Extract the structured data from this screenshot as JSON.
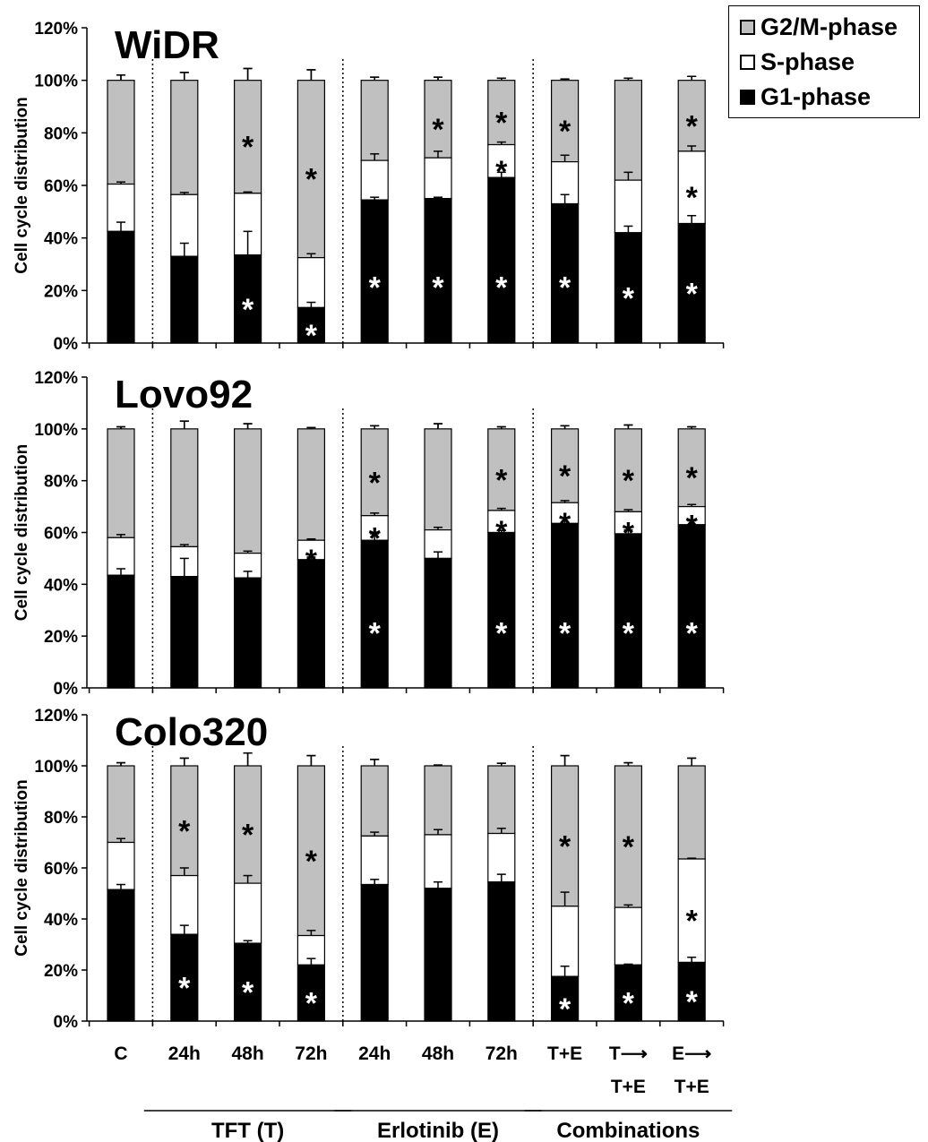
{
  "legend": {
    "items": [
      {
        "label": "G2/M-phase",
        "color": "#c0c0c0"
      },
      {
        "label": "S-phase",
        "color": "#ffffff"
      },
      {
        "label": "G1-phase",
        "color": "#000000"
      }
    ]
  },
  "chart_data": {
    "type": "bar",
    "stacked": true,
    "ylabel": "Cell cycle distribution",
    "ylim": [
      0,
      120
    ],
    "yticks": [
      "0%",
      "20%",
      "40%",
      "60%",
      "80%",
      "100%",
      "120%"
    ],
    "categories": [
      {
        "line1": "C",
        "line2": ""
      },
      {
        "line1": "24h",
        "line2": ""
      },
      {
        "line1": "48h",
        "line2": ""
      },
      {
        "line1": "72h",
        "line2": ""
      },
      {
        "line1": "24h",
        "line2": ""
      },
      {
        "line1": "48h",
        "line2": ""
      },
      {
        "line1": "72h",
        "line2": ""
      },
      {
        "line1": "T+E",
        "line2": ""
      },
      {
        "line1": "T⟶",
        "line2": "T+E"
      },
      {
        "line1": "E⟶",
        "line2": "T+E"
      }
    ],
    "groups": [
      {
        "label": "TFT (T)",
        "categories": [
          1,
          2,
          3
        ]
      },
      {
        "label": "Erlotinib (E)",
        "categories": [
          4,
          5,
          6
        ]
      },
      {
        "label": "Combinations",
        "categories": [
          7,
          8,
          9
        ]
      }
    ],
    "series_colors": {
      "G1": "#000000",
      "S": "#ffffff",
      "G2M": "#c0c0c0"
    },
    "panels": [
      {
        "title": "WiDR",
        "G1": [
          42.5,
          33,
          33.5,
          13.5,
          54.5,
          55,
          63,
          53,
          42,
          45.5
        ],
        "S": [
          18,
          23.5,
          23.5,
          19,
          15,
          15.5,
          12.5,
          16,
          20,
          27.5
        ],
        "G2M": [
          39.5,
          43.5,
          43,
          67.5,
          30.5,
          29.5,
          24.5,
          31,
          38,
          27
        ],
        "err_total": [
          2,
          3,
          4.5,
          4,
          1.2,
          1.2,
          0.8,
          0.5,
          0.8,
          1.5
        ],
        "err_s": [
          0.8,
          0.8,
          0.5,
          1.5,
          2.5,
          2.5,
          1,
          2.5,
          3,
          2
        ],
        "err_g1": [
          3.5,
          5,
          9,
          2,
          1,
          0.5,
          2,
          3.5,
          2.5,
          3
        ],
        "stars_g2m": [
          false,
          false,
          true,
          true,
          false,
          true,
          true,
          true,
          false,
          true
        ],
        "stars_s": [
          false,
          false,
          false,
          false,
          false,
          false,
          true,
          false,
          false,
          true
        ],
        "stars_g1": [
          false,
          false,
          true,
          true,
          true,
          true,
          true,
          true,
          true,
          true
        ]
      },
      {
        "title": "Lovo92",
        "G1": [
          43.5,
          43,
          42.5,
          49.5,
          57,
          50,
          60,
          63.5,
          59.5,
          63
        ],
        "S": [
          14.5,
          11.5,
          9.5,
          7.5,
          9.5,
          11,
          8.5,
          8,
          8.5,
          7
        ],
        "G2M": [
          42,
          45.5,
          48,
          43,
          33.5,
          39,
          31.5,
          28.5,
          32,
          30
        ],
        "err_total": [
          0.8,
          3,
          2,
          0.5,
          1.2,
          2,
          0.8,
          1.2,
          1.5,
          0.8
        ],
        "err_s": [
          1.2,
          0.8,
          0.8,
          0.5,
          1,
          1,
          0.8,
          0.8,
          0.8,
          0.8
        ],
        "err_g1": [
          2.5,
          7,
          2.5,
          1,
          2.5,
          2.5,
          0.8,
          2,
          1.5,
          1.5
        ],
        "stars_g2m": [
          false,
          false,
          false,
          false,
          true,
          false,
          true,
          true,
          true,
          true
        ],
        "stars_s": [
          false,
          false,
          false,
          true,
          true,
          false,
          true,
          true,
          true,
          true
        ],
        "stars_g1": [
          false,
          false,
          false,
          false,
          true,
          false,
          true,
          true,
          true,
          true
        ]
      },
      {
        "title": "Colo320",
        "G1": [
          51.5,
          34,
          30.5,
          22,
          53.5,
          52,
          54.5,
          17.5,
          22,
          23
        ],
        "S": [
          18.5,
          23,
          23.5,
          11.5,
          19,
          21,
          19,
          27.5,
          22.5,
          40.5
        ],
        "G2M": [
          30,
          43,
          46,
          66.5,
          27.5,
          27,
          26.5,
          55,
          55.5,
          36.5
        ],
        "err_total": [
          1.2,
          3,
          5,
          4,
          2.5,
          0.3,
          1,
          4,
          1.2,
          3
        ],
        "err_s": [
          1.5,
          3,
          3,
          2,
          1.5,
          2,
          2,
          5.5,
          1,
          0.3
        ],
        "err_g1": [
          2,
          3.5,
          1,
          2.5,
          2,
          2.5,
          3,
          4,
          0.3,
          2
        ],
        "stars_g2m": [
          false,
          true,
          true,
          true,
          false,
          false,
          false,
          true,
          true,
          false
        ],
        "stars_s": [
          false,
          false,
          false,
          false,
          false,
          false,
          false,
          false,
          false,
          true
        ],
        "stars_g1": [
          false,
          true,
          true,
          true,
          false,
          false,
          false,
          true,
          true,
          true
        ]
      }
    ]
  }
}
